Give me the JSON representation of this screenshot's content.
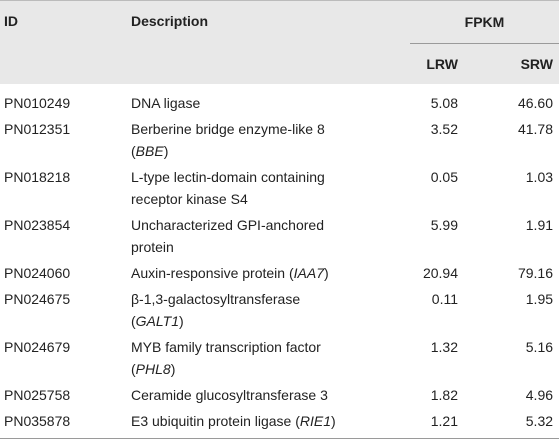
{
  "header": {
    "id": "ID",
    "description": "Description",
    "group": "FPKM",
    "columns": [
      "LRW",
      "SRW"
    ]
  },
  "table": {
    "rows": [
      {
        "id": "PN010249",
        "description": [
          [
            "DNA ligase"
          ]
        ],
        "values": [
          "5.08",
          "46.60"
        ]
      },
      {
        "id": "PN012351",
        "description": [
          [
            "Berberine bridge enzyme-like 8"
          ],
          [
            "(",
            "BBE",
            ")"
          ]
        ],
        "values": [
          "3.52",
          "41.78"
        ]
      },
      {
        "id": "PN018218",
        "description": [
          [
            "L-type lectin-domain containing"
          ],
          [
            "receptor kinase S4"
          ]
        ],
        "values": [
          "0.05",
          "1.03"
        ]
      },
      {
        "id": "PN023854",
        "description": [
          [
            "Uncharacterized GPI-anchored"
          ],
          [
            "protein"
          ]
        ],
        "values": [
          "5.99",
          "1.91"
        ]
      },
      {
        "id": "PN024060",
        "description": [
          [
            "Auxin-responsive protein (",
            "IAA7",
            ")"
          ]
        ],
        "values": [
          "20.94",
          "79.16"
        ]
      },
      {
        "id": "PN024675",
        "description": [
          [
            "β-1,3-galactosyltransferase"
          ],
          [
            "(",
            "GALT1",
            ")"
          ]
        ],
        "values": [
          "0.11",
          "1.95"
        ]
      },
      {
        "id": "PN024679",
        "description": [
          [
            "MYB family transcription factor"
          ],
          [
            "(",
            "PHL8",
            ")"
          ]
        ],
        "values": [
          "1.32",
          "5.16"
        ]
      },
      {
        "id": "PN025758",
        "description": [
          [
            "Ceramide glucosyltransferase 3"
          ]
        ],
        "values": [
          "1.82",
          "4.96"
        ]
      },
      {
        "id": "PN035878",
        "description": [
          [
            "E3 ubiquitin protein ligase (",
            "RIE1",
            ")"
          ]
        ],
        "values": [
          "1.21",
          "5.32"
        ]
      }
    ]
  }
}
